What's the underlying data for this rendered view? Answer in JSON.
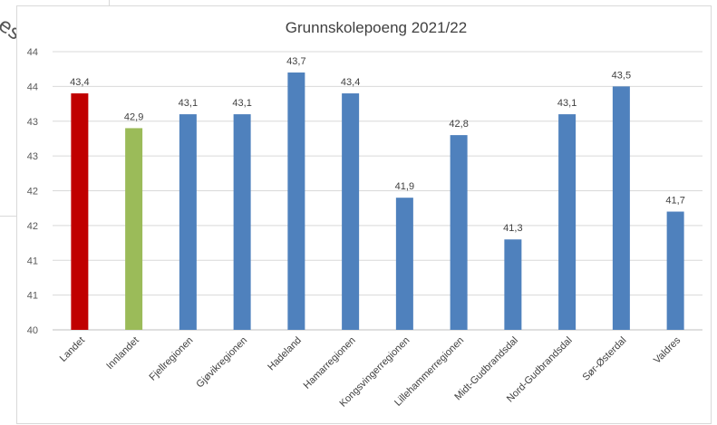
{
  "background": {
    "fragment_text": "es"
  },
  "chart_data": {
    "type": "bar",
    "title": "Grunnskolepoeng 2021/22",
    "xlabel": "",
    "ylabel": "",
    "ylim": [
      40,
      44
    ],
    "y_tick_values": [
      40,
      40.5,
      41,
      41.5,
      42,
      42.5,
      43,
      43.5,
      44
    ],
    "y_tick_labels": [
      "40",
      "41",
      "41",
      "42",
      "42",
      "43",
      "43",
      "44",
      "44"
    ],
    "grid": true,
    "categories": [
      "Landet",
      "Innlandet",
      "Fjellregionen",
      "Gjøvikregionen",
      "Hadeland",
      "Hamarregionen",
      "Kongsvingerregionen",
      "Lillehammerregionen",
      "Midt-Gudbrandsdal",
      "Nord-Gudbrandsdal",
      "Sør-Østerdal",
      "Valdres"
    ],
    "values": [
      43.4,
      42.9,
      43.1,
      43.1,
      43.7,
      43.4,
      41.9,
      42.8,
      41.3,
      43.1,
      43.5,
      41.7
    ],
    "data_labels": [
      "43,4",
      "42,9",
      "43,1",
      "43,1",
      "43,7",
      "43,4",
      "41,9",
      "42,8",
      "41,3",
      "43,1",
      "43,5",
      "41,7"
    ],
    "bar_colors": [
      "#c00000",
      "#9bbb59",
      "#4f81bd",
      "#4f81bd",
      "#4f81bd",
      "#4f81bd",
      "#4f81bd",
      "#4f81bd",
      "#4f81bd",
      "#4f81bd",
      "#4f81bd",
      "#4f81bd"
    ]
  }
}
